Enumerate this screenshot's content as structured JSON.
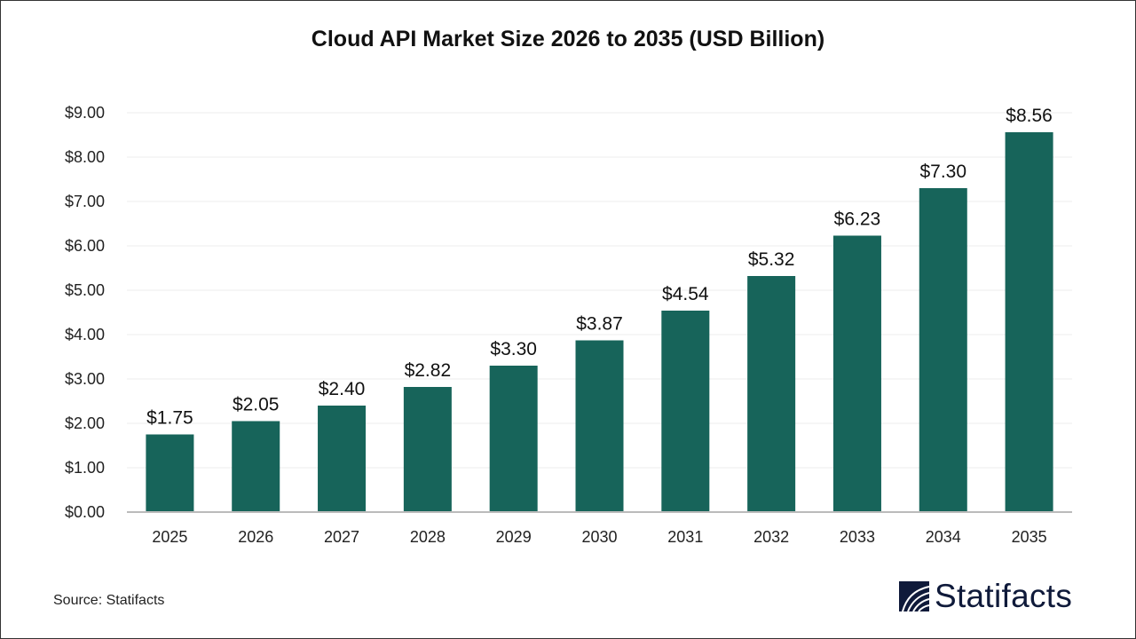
{
  "chart_data": {
    "type": "bar",
    "title": "Cloud API Market Size 2026 to 2035 (USD Billion)",
    "categories": [
      "2025",
      "2026",
      "2027",
      "2028",
      "2029",
      "2030",
      "2031",
      "2032",
      "2033",
      "2034",
      "2035"
    ],
    "values": [
      1.75,
      2.05,
      2.4,
      2.82,
      3.3,
      3.87,
      4.54,
      5.32,
      6.23,
      7.3,
      8.56
    ],
    "data_labels": [
      "$1.75",
      "$2.05",
      "$2.40",
      "$2.82",
      "$3.30",
      "$3.87",
      "$4.54",
      "$5.32",
      "$6.23",
      "$7.30",
      "$8.56"
    ],
    "yticks": [
      "$0.00",
      "$1.00",
      "$2.00",
      "$3.00",
      "$4.00",
      "$5.00",
      "$6.00",
      "$7.00",
      "$8.00",
      "$9.00"
    ],
    "ylim": [
      0,
      9
    ],
    "xlabel": "",
    "ylabel": "",
    "grid": true,
    "bar_color": "#17645a"
  },
  "source": "Source: Statifacts",
  "logo": {
    "text": "Statifacts",
    "color": "#0f1a3a"
  }
}
